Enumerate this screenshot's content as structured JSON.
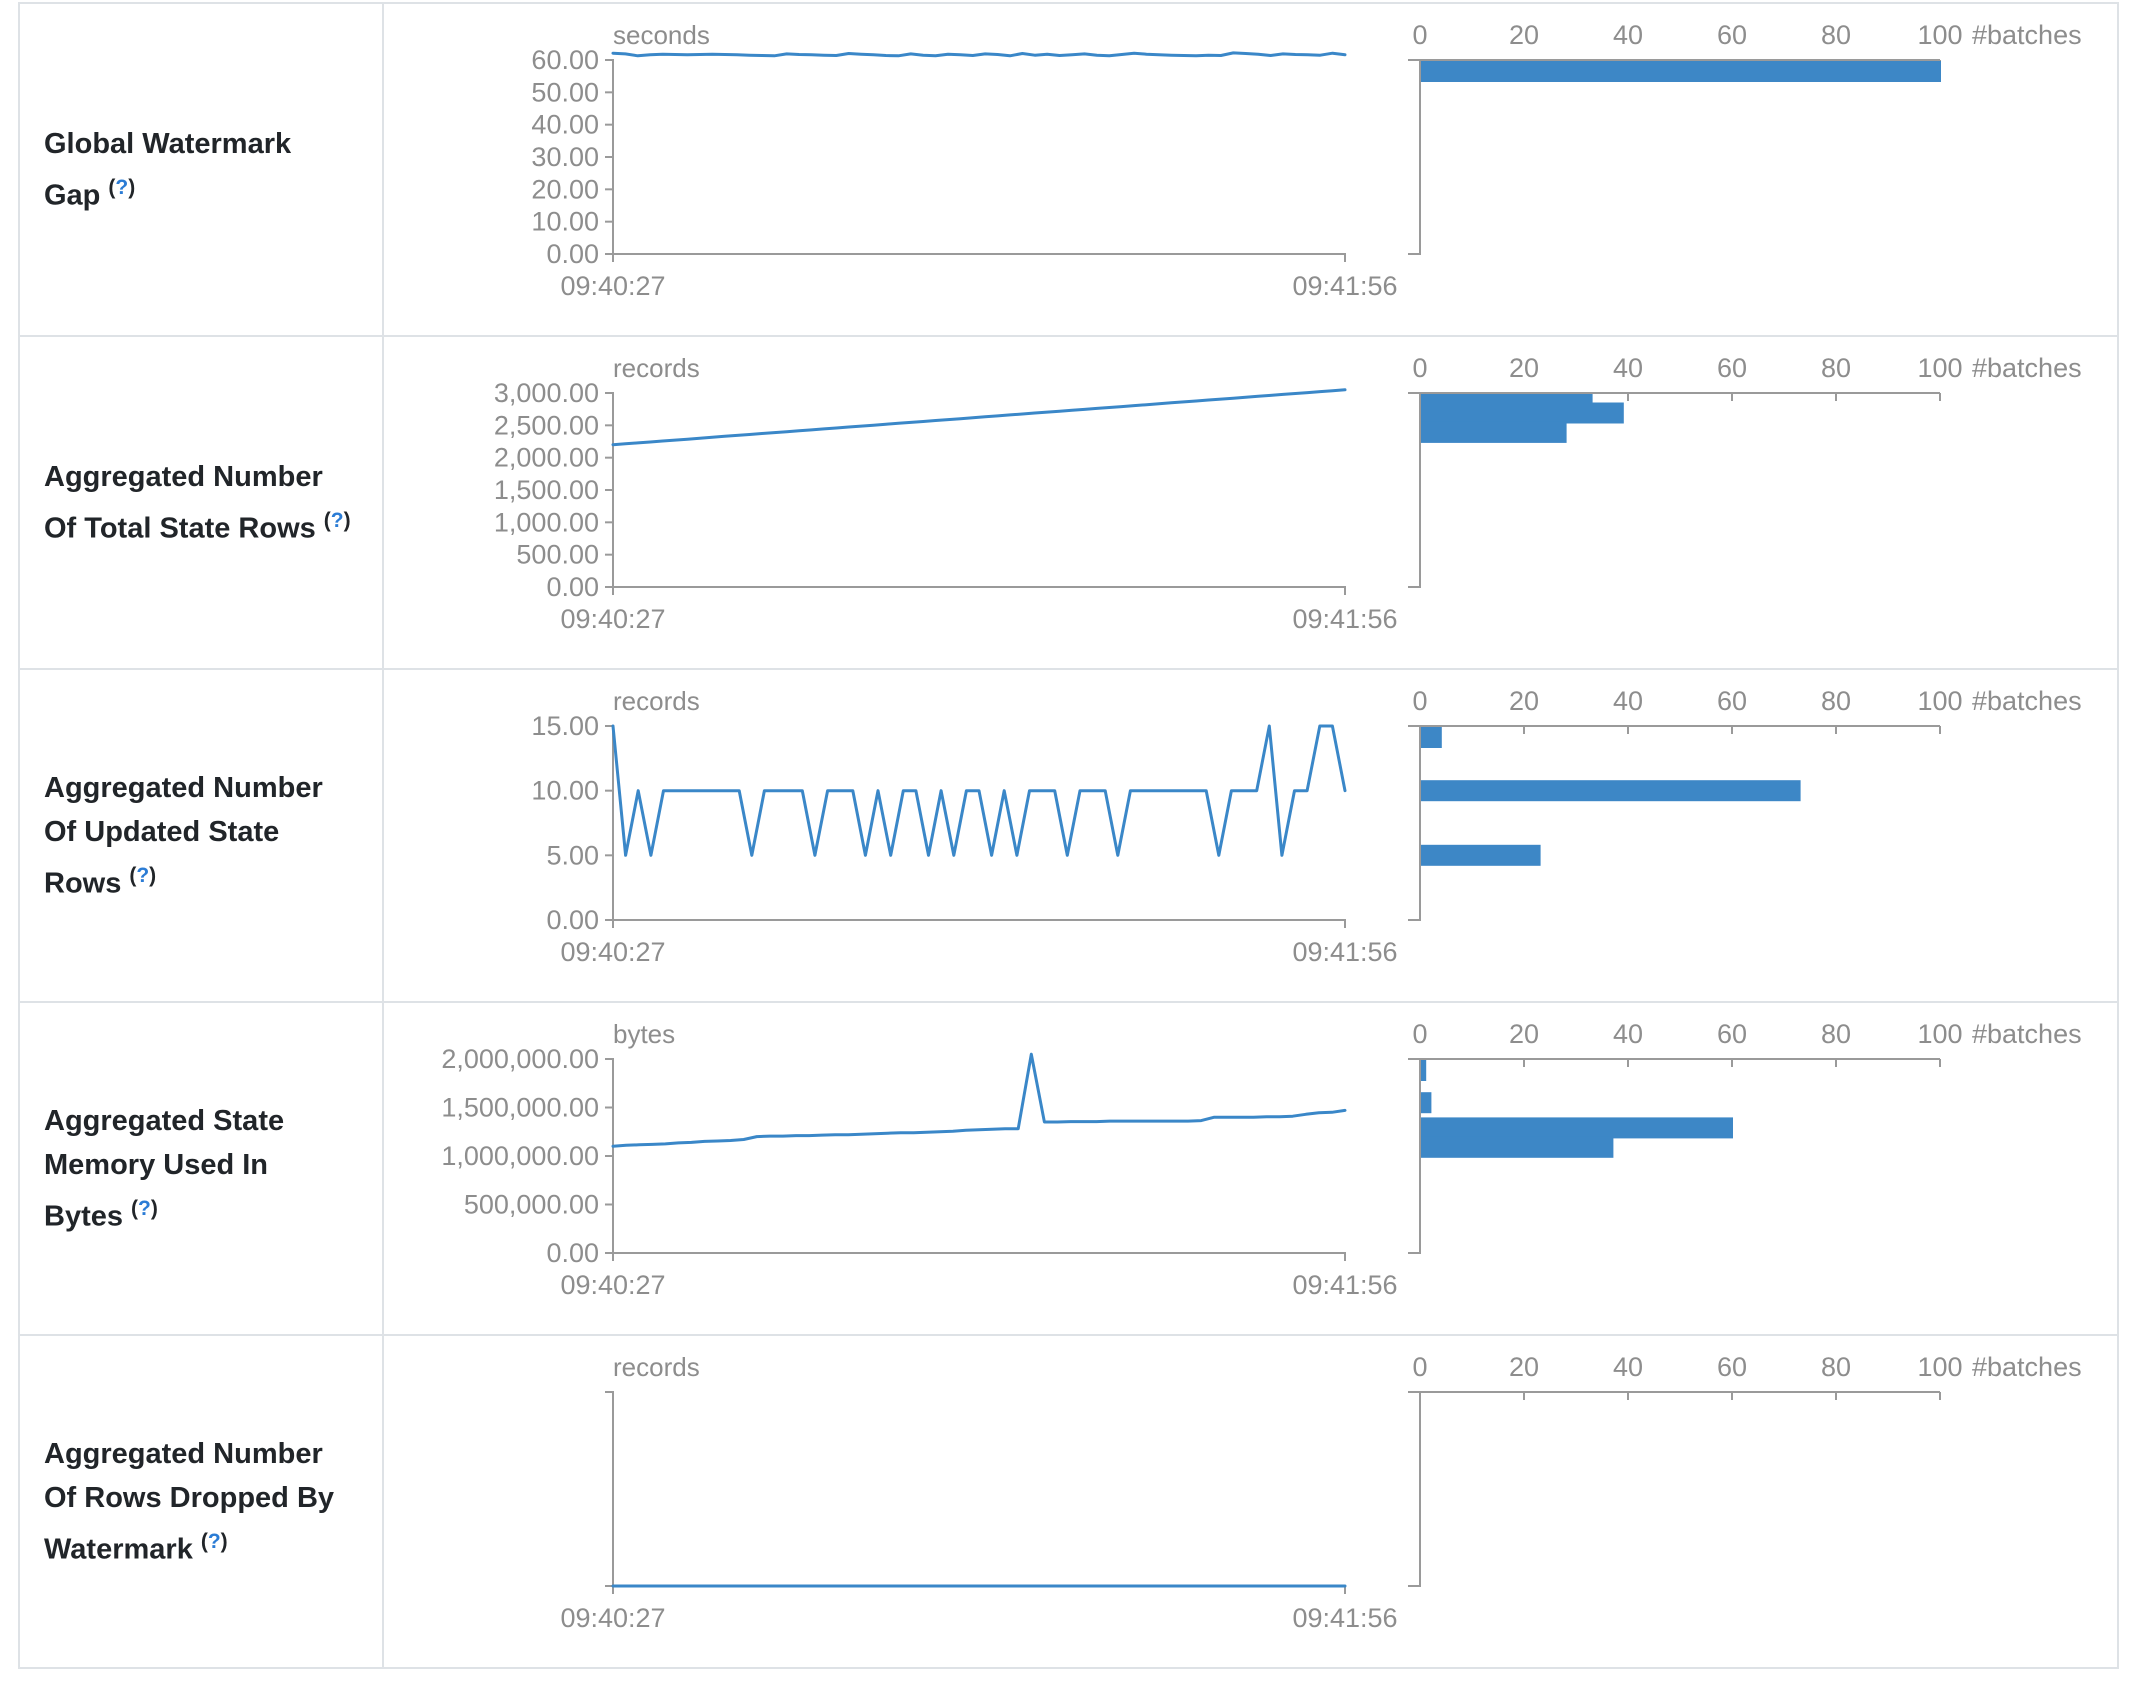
{
  "help_marker": {
    "open": "(",
    "q": "?",
    "close": ")"
  },
  "chart_data": [
    {
      "row_label": "Global Watermark Gap",
      "timeline": {
        "type": "line",
        "unit": "seconds",
        "x_start": "09:40:27",
        "x_end": "09:41:56",
        "y_ticks": [
          "60.00",
          "50.00",
          "40.00",
          "30.00",
          "20.00",
          "10.00",
          "0.00"
        ],
        "y_max": 60,
        "values": [
          62.1,
          61.9,
          61.3,
          61.6,
          61.8,
          61.7,
          61.6,
          61.7,
          61.8,
          61.7,
          61.6,
          61.5,
          61.4,
          61.3,
          61.9,
          61.7,
          61.6,
          61.5,
          61.4,
          62.0,
          61.8,
          61.6,
          61.4,
          61.3,
          61.9,
          61.5,
          61.3,
          61.8,
          61.6,
          61.4,
          61.9,
          61.7,
          61.3,
          62.0,
          61.5,
          61.8,
          61.4,
          61.6,
          61.9,
          61.5,
          61.3,
          61.7,
          62.1,
          61.8,
          61.6,
          61.5,
          61.4,
          61.3,
          61.5,
          61.4,
          62.2,
          62.0,
          61.8,
          61.4,
          61.9,
          61.7,
          61.6,
          61.5,
          62.1,
          61.6
        ]
      },
      "histogram": {
        "type": "bar",
        "axis_label": "#batches",
        "ticks": [
          0,
          20,
          40,
          60,
          80,
          100
        ],
        "bars": [
          {
            "bin": 61.5,
            "count": 100
          }
        ]
      }
    },
    {
      "row_label": "Aggregated Number Of Total State Rows",
      "timeline": {
        "type": "line",
        "unit": "records",
        "x_start": "09:40:27",
        "x_end": "09:41:56",
        "y_ticks": [
          "3,000.00",
          "2,500.00",
          "2,000.00",
          "1,500.00",
          "1,000.00",
          "500.00",
          "0.00"
        ],
        "y_max": 3000,
        "values": [
          2200,
          2214,
          2229,
          2243,
          2258,
          2272,
          2286,
          2301,
          2315,
          2330,
          2344,
          2358,
          2373,
          2387,
          2402,
          2416,
          2430,
          2445,
          2459,
          2474,
          2488,
          2502,
          2517,
          2531,
          2546,
          2560,
          2574,
          2589,
          2603,
          2618,
          2632,
          2646,
          2661,
          2675,
          2690,
          2704,
          2718,
          2733,
          2747,
          2762,
          2776,
          2790,
          2805,
          2819,
          2834,
          2848,
          2862,
          2877,
          2891,
          2906,
          2920,
          2934,
          2949,
          2963,
          2978,
          2992,
          3006,
          3021,
          3035,
          3050
        ]
      },
      "histogram": {
        "type": "bar",
        "axis_label": "#batches",
        "ticks": [
          0,
          20,
          40,
          60,
          80,
          100
        ],
        "bars": [
          {
            "bin": 2990,
            "count": 33
          },
          {
            "bin": 2690,
            "count": 39
          },
          {
            "bin": 2390,
            "count": 28
          }
        ]
      }
    },
    {
      "row_label": "Aggregated Number Of Updated State Rows",
      "timeline": {
        "type": "line",
        "unit": "records",
        "x_start": "09:40:27",
        "x_end": "09:41:56",
        "y_ticks": [
          "15.00",
          "10.00",
          "5.00",
          "0.00"
        ],
        "y_max": 15,
        "values": [
          15,
          5,
          10,
          5,
          10,
          10,
          10,
          10,
          10,
          10,
          10,
          5,
          10,
          10,
          10,
          10,
          5,
          10,
          10,
          10,
          5,
          10,
          5,
          10,
          10,
          5,
          10,
          5,
          10,
          10,
          5,
          10,
          5,
          10,
          10,
          10,
          5,
          10,
          10,
          10,
          5,
          10,
          10,
          10,
          10,
          10,
          10,
          10,
          5,
          10,
          10,
          10,
          15,
          5,
          10,
          10,
          15,
          15,
          10
        ]
      },
      "histogram": {
        "type": "bar",
        "axis_label": "#batches",
        "ticks": [
          0,
          20,
          40,
          60,
          80,
          100
        ],
        "bars": [
          {
            "bin": 15,
            "count": 4
          },
          {
            "bin": 10,
            "count": 73
          },
          {
            "bin": 5,
            "count": 23
          }
        ]
      }
    },
    {
      "row_label": "Aggregated State Memory Used In Bytes",
      "timeline": {
        "type": "line",
        "unit": "bytes",
        "x_start": "09:40:27",
        "x_end": "09:41:56",
        "y_ticks": [
          "2,000,000.00",
          "1,500,000.00",
          "1,000,000.00",
          "500,000.00",
          "0.00"
        ],
        "y_max": 2000000,
        "values": [
          1100000,
          1110000,
          1115000,
          1120000,
          1125000,
          1135000,
          1140000,
          1150000,
          1155000,
          1160000,
          1170000,
          1200000,
          1205000,
          1205000,
          1210000,
          1210000,
          1215000,
          1220000,
          1220000,
          1225000,
          1230000,
          1235000,
          1240000,
          1240000,
          1245000,
          1250000,
          1255000,
          1265000,
          1270000,
          1275000,
          1280000,
          1280000,
          2050000,
          1350000,
          1350000,
          1355000,
          1355000,
          1355000,
          1360000,
          1360000,
          1360000,
          1360000,
          1360000,
          1360000,
          1360000,
          1365000,
          1400000,
          1400000,
          1400000,
          1400000,
          1405000,
          1405000,
          1410000,
          1430000,
          1445000,
          1450000,
          1470000
        ]
      },
      "histogram": {
        "type": "bar",
        "axis_label": "#batches",
        "ticks": [
          0,
          20,
          40,
          60,
          80,
          100
        ],
        "bars": [
          {
            "bin": 2050000,
            "count": 1
          },
          {
            "bin": 1550000,
            "count": 2
          },
          {
            "bin": 1290000,
            "count": 60
          },
          {
            "bin": 1090000,
            "count": 37
          }
        ]
      }
    },
    {
      "row_label": "Aggregated Number Of Rows Dropped By Watermark",
      "timeline": {
        "type": "line",
        "unit": "records",
        "x_start": "09:40:27",
        "x_end": "09:41:56",
        "y_ticks": [],
        "y_max": 1,
        "values": [
          0,
          0,
          0,
          0,
          0,
          0,
          0,
          0,
          0,
          0
        ]
      },
      "histogram": {
        "type": "bar",
        "axis_label": "#batches",
        "ticks": [
          0,
          20,
          40,
          60,
          80,
          100
        ],
        "bars": []
      }
    }
  ]
}
